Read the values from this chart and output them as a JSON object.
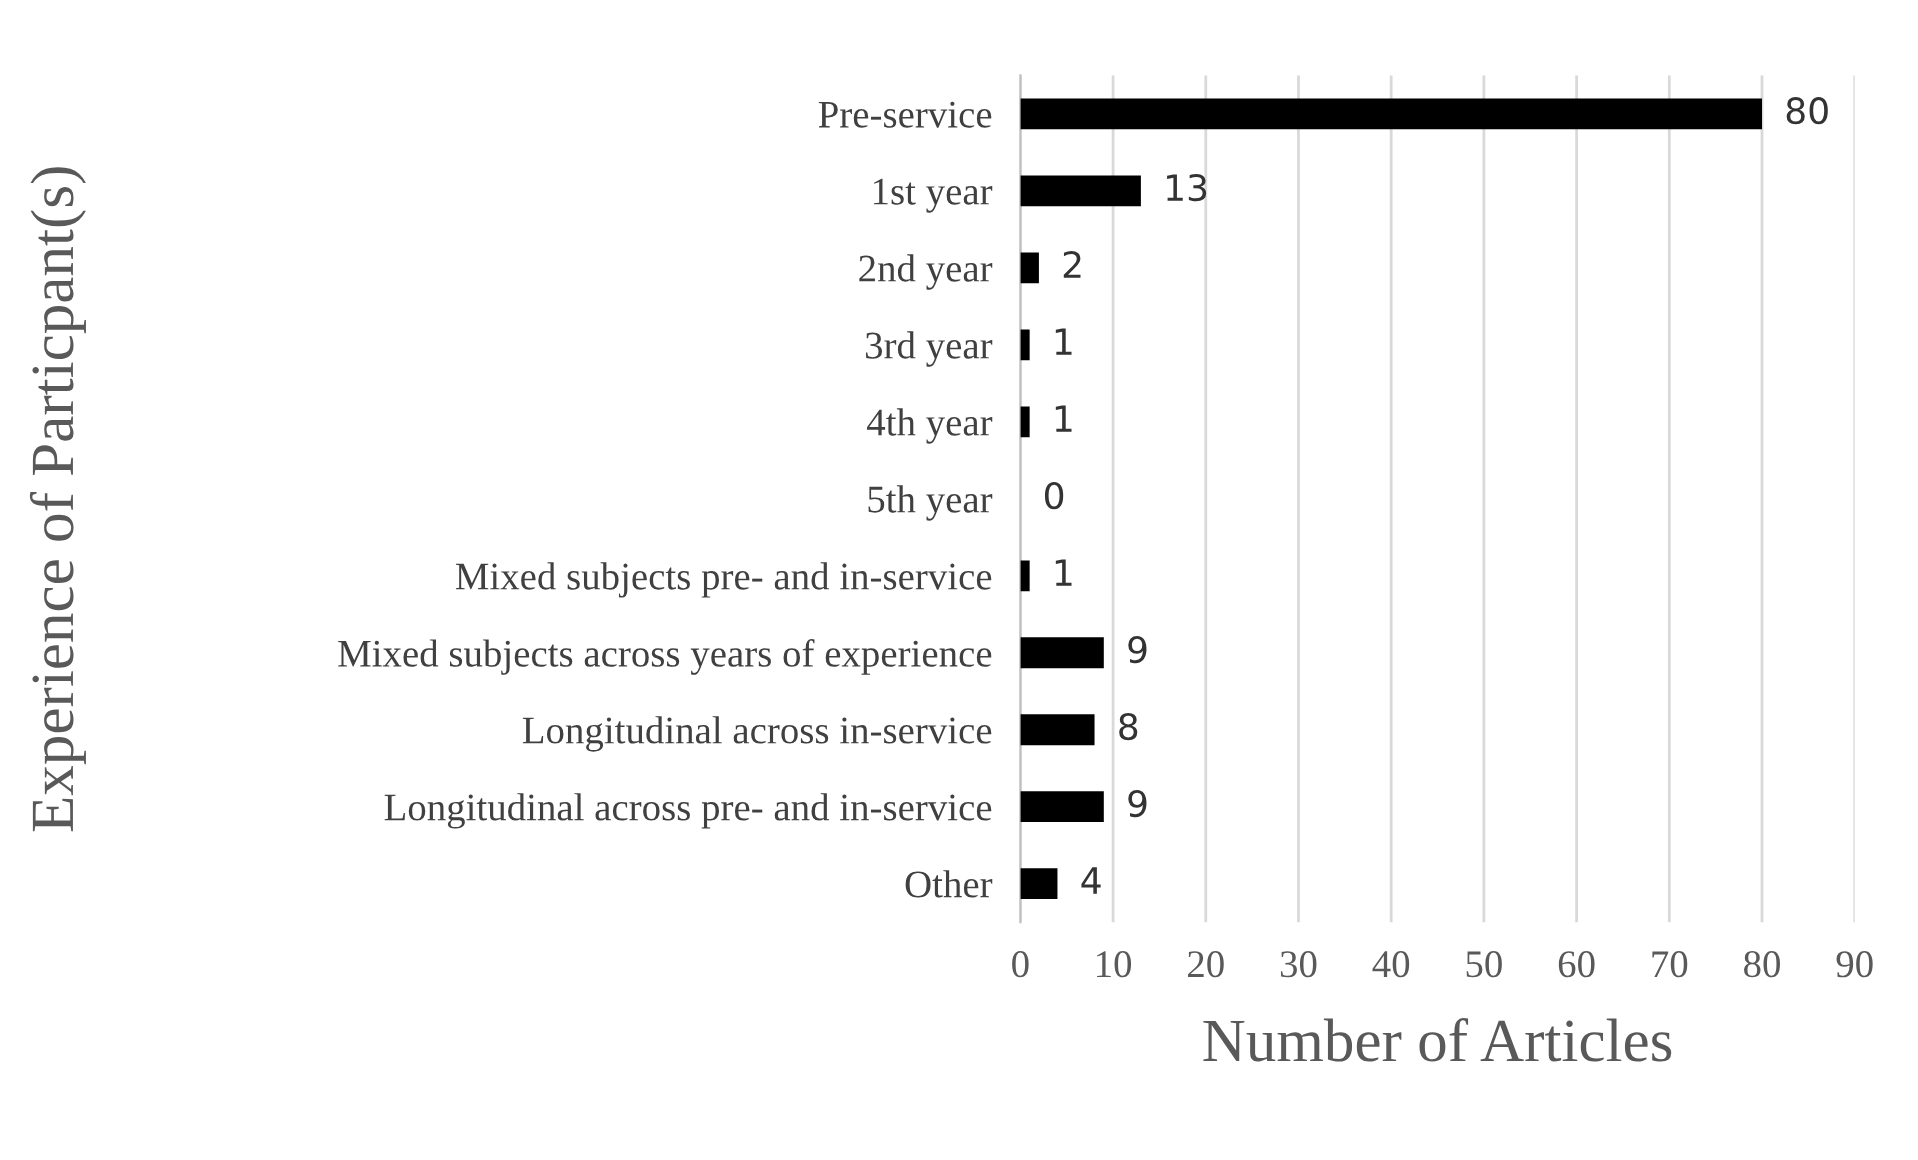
{
  "chart_data": {
    "type": "bar",
    "orientation": "horizontal",
    "xlabel": "Number of Articles",
    "ylabel": "Experience of Particpant(s)",
    "categories": [
      "Pre-service",
      "1st year",
      "2nd year",
      "3rd year",
      "4th year",
      "5th year",
      "Mixed subjects pre- and in-service",
      "Mixed subjects across years of experience",
      "Longitudinal across in-service",
      "Longitudinal across pre- and in-service",
      "Other"
    ],
    "values": [
      80,
      13,
      2,
      1,
      1,
      0,
      1,
      9,
      8,
      9,
      4
    ],
    "color": "#000000",
    "xlim": [
      0,
      90
    ],
    "xticks": [
      0,
      10,
      20,
      30,
      40,
      50,
      60,
      70,
      80,
      90
    ],
    "grid": "x",
    "data_labels": true
  }
}
